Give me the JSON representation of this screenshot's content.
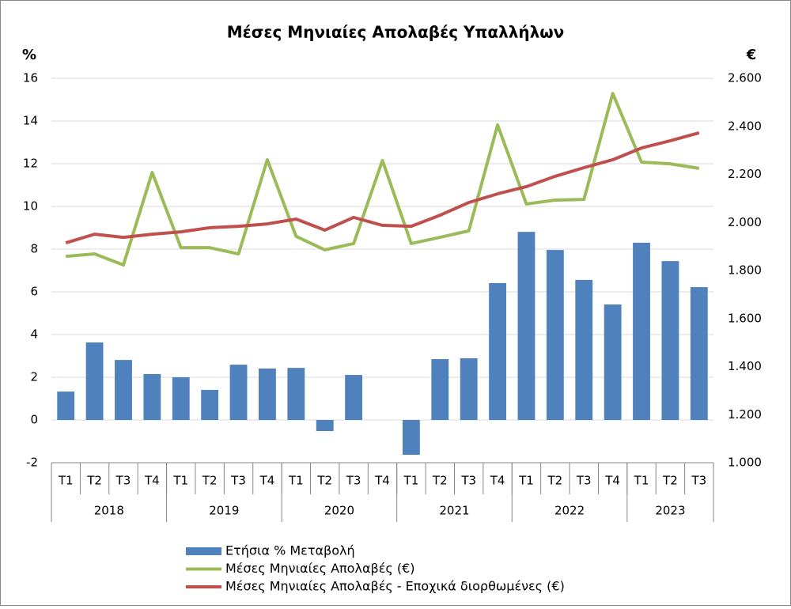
{
  "chart_data": {
    "type": "bar",
    "title": "Μέσες Μηνιαίες Απολαβές Υπαλλήλων",
    "y_label": "%",
    "y2_label": "€",
    "groups": [
      {
        "name": "2018",
        "categories": [
          "T1",
          "T2",
          "T3",
          "T4"
        ]
      },
      {
        "name": "2019",
        "categories": [
          "T1",
          "T2",
          "T3",
          "T4"
        ]
      },
      {
        "name": "2020",
        "categories": [
          "T1",
          "T2",
          "T3",
          "T4"
        ]
      },
      {
        "name": "2021",
        "categories": [
          "T1",
          "T2",
          "T3",
          "T4"
        ]
      },
      {
        "name": "2022",
        "categories": [
          "T1",
          "T2",
          "T3",
          "T4"
        ]
      },
      {
        "name": "2023",
        "categories": [
          "T1",
          "T2",
          "T3"
        ]
      }
    ],
    "series": [
      {
        "name": "Ετήσια % Μεταβολή",
        "type": "bar",
        "color": "#4f81bd",
        "values": [
          1.33,
          3.63,
          2.81,
          2.15,
          2.0,
          1.41,
          2.59,
          2.41,
          2.44,
          -0.52,
          2.11,
          0,
          -1.63,
          2.85,
          2.89,
          6.41,
          8.81,
          7.96,
          6.56,
          5.41,
          8.3,
          7.44,
          6.22
        ]
      },
      {
        "name": "Μέσες Μηνιαίες Απολαβές (€)",
        "type": "line",
        "axis": "y2",
        "color": "#9bbb59",
        "values": [
          1859,
          1869,
          1823,
          2208,
          1895,
          1895,
          1869,
          2261,
          1942,
          1886,
          1912,
          2258,
          1912,
          1938,
          1965,
          2406,
          2077,
          2093,
          2096,
          2537,
          2251,
          2244,
          2225
        ]
      },
      {
        "name": "Μέσες Μηνιαίες Απολαβές - Εποχικά διορθωμένες (€)",
        "type": "line",
        "axis": "y2",
        "color": "#c0504d",
        "values": [
          1915,
          1951,
          1938,
          1951,
          1961,
          1978,
          1984,
          1994,
          2014,
          1968,
          2021,
          1988,
          1984,
          2030,
          2083,
          2119,
          2149,
          2192,
          2228,
          2261,
          2310,
          2340,
          2373
        ]
      }
    ],
    "ylim": [
      -2,
      16
    ],
    "yticks": [
      -2,
      0,
      2,
      4,
      6,
      8,
      10,
      12,
      14,
      16
    ],
    "y2lim": [
      1000,
      2600
    ],
    "y2ticks": [
      {
        "value": 1000,
        "label": "1.000"
      },
      {
        "value": 1200,
        "label": "1.200"
      },
      {
        "value": 1400,
        "label": "1.400"
      },
      {
        "value": 1600,
        "label": "1.600"
      },
      {
        "value": 1800,
        "label": "1.800"
      },
      {
        "value": 2000,
        "label": "2.000"
      },
      {
        "value": 2200,
        "label": "2.200"
      },
      {
        "value": 2400,
        "label": "2.400"
      },
      {
        "value": 2600,
        "label": "2.600"
      }
    ],
    "grid": true,
    "legend": "bottom"
  }
}
